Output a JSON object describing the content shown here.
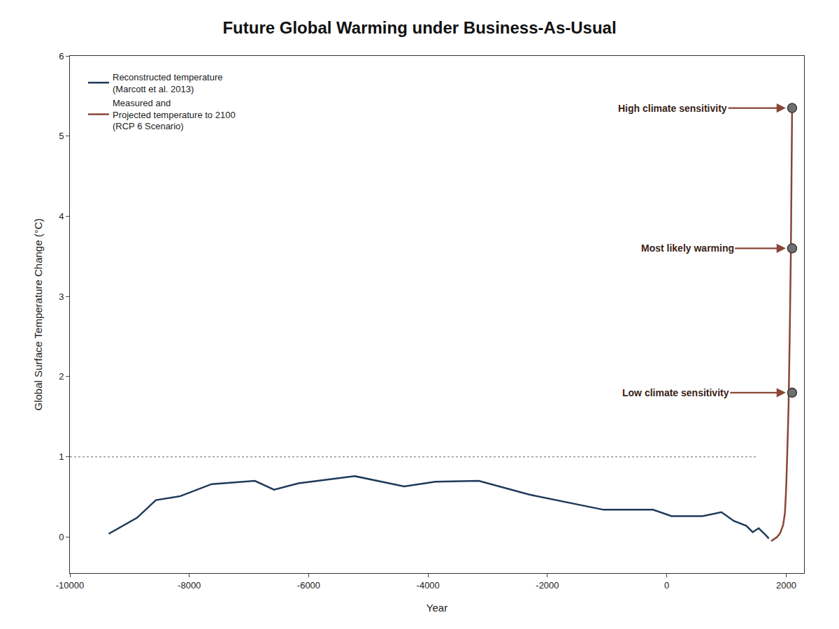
{
  "chart_data": {
    "type": "line",
    "title": "Future Global Warming under Business-As-Usual",
    "x_label": "Year",
    "y_label": "Global Surface Temperature Change (°C)",
    "xlim": [
      -10000,
      2300
    ],
    "ylim": [
      -0.45,
      6
    ],
    "xticks": [
      -10000,
      -8000,
      -6000,
      -4000,
      -2000,
      0,
      2000
    ],
    "yticks": [
      0,
      1,
      2,
      3,
      4,
      5,
      6
    ],
    "grid": false,
    "legend": "upper left",
    "hline": {
      "value": 1,
      "x": [
        -10000,
        1500
      ],
      "line_style": "dot"
    },
    "series": [
      {
        "name": "Reconstructed temperature\n(Marcott et al. 2013)",
        "color": "#1f3a5a",
        "type": "line",
        "x": [
          -9350,
          -8875,
          -8560,
          -8150,
          -7625,
          -6900,
          -6580,
          -6170,
          -5230,
          -4400,
          -3875,
          -3150,
          -2310,
          -1480,
          -1060,
          -230,
          80,
          600,
          915,
          1125,
          1333,
          1440,
          1540,
          1650,
          1710
        ],
        "values": [
          0.04,
          0.24,
          0.46,
          0.51,
          0.66,
          0.7,
          0.59,
          0.67,
          0.76,
          0.63,
          0.69,
          0.7,
          0.53,
          0.4,
          0.34,
          0.34,
          0.26,
          0.26,
          0.31,
          0.2,
          0.14,
          0.06,
          0.11,
          0.03,
          -0.02
        ]
      },
      {
        "name": "Measured and\nProjected temperature to 2100\n(RCP 6 Scenario)",
        "color": "#8a4535",
        "type": "line",
        "x": [
          1750,
          1850,
          1900,
          1950,
          1980,
          2000,
          2017,
          2040,
          2060,
          2080,
          2100
        ],
        "values": [
          -0.05,
          0,
          0.05,
          0.15,
          0.3,
          0.6,
          1.0,
          1.6,
          2.5,
          3.6,
          5.35
        ]
      },
      {
        "type": "scatter",
        "marker": "circle",
        "color": "#707070",
        "x": [
          2100,
          2100,
          2100
        ],
        "values": [
          5.35,
          3.6,
          1.8
        ],
        "labels": [
          "High climate sensitivity",
          "Most likely warming",
          "Low climate sensitivity"
        ]
      }
    ]
  }
}
